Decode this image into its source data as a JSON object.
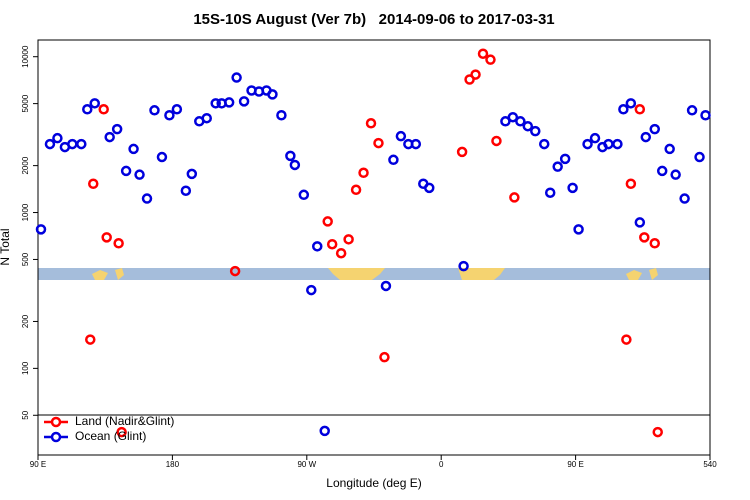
{
  "chart_data": {
    "type": "scatter",
    "title": "15S-10S August (Ver 7b)   2014-09-06 to 2017-03-31",
    "xlabel": "Longitude (deg E)",
    "ylabel": "N Total",
    "log_y": true,
    "legend": "bottomleft",
    "xlim": [
      90,
      540
    ],
    "xticks": [
      {
        "value": 90,
        "label": "90 E"
      },
      180,
      {
        "value": 270,
        "label": "90 W"
      },
      {
        "value": 360,
        "label": "0"
      },
      {
        "value": 450,
        "label": "90 E"
      },
      540
    ],
    "ylim": [
      27.8,
      12800
    ],
    "yticks": [
      50,
      100,
      200,
      500,
      1000,
      2000,
      5000,
      10000
    ],
    "series": [
      {
        "name": "Land (Nadir&Glint)",
        "color": "#ff0000",
        "x": [
          127,
          134,
          136,
          144,
          125,
          146,
          222,
          284,
          287,
          293,
          298,
          303,
          308,
          313,
          318,
          322,
          374,
          379,
          383,
          388,
          393,
          397,
          409,
          484,
          487,
          493,
          496,
          503,
          505
        ],
        "values": [
          1530,
          4600,
          693,
          635,
          153,
          39,
          421,
          877,
          626,
          548,
          673,
          1400,
          1800,
          3740,
          2790,
          118,
          2450,
          7140,
          7680,
          10450,
          9570,
          2880,
          1250,
          153,
          1530,
          4600,
          693,
          635,
          39
        ]
      },
      {
        "name": "Ocean (Glint)",
        "color": "#0000dd",
        "x": [
          92,
          98,
          103,
          108,
          113,
          119,
          123,
          128,
          138,
          143,
          149,
          154,
          158,
          163,
          168,
          173,
          178,
          183,
          189,
          193,
          198,
          203,
          209,
          213,
          218,
          223,
          228,
          233,
          238,
          243,
          247,
          253,
          259,
          262,
          268,
          273,
          277,
          282,
          323,
          328,
          333,
          338,
          343,
          348,
          352,
          375,
          403,
          408,
          413,
          418,
          423,
          429,
          433,
          438,
          443,
          448,
          452,
          458,
          463,
          468,
          472,
          478,
          482,
          487,
          493,
          497,
          503,
          508,
          513,
          517,
          523,
          528,
          533,
          537
        ],
        "values": [
          780,
          2750,
          3000,
          2630,
          2750,
          2750,
          4600,
          5020,
          3050,
          3430,
          1850,
          2560,
          1750,
          1230,
          4530,
          2270,
          4210,
          4600,
          1380,
          1770,
          3850,
          4030,
          5020,
          5020,
          5090,
          7350,
          5170,
          6070,
          5980,
          6070,
          5730,
          4210,
          2310,
          2020,
          1300,
          318,
          607,
          39.7,
          338,
          2180,
          3090,
          2750,
          2750,
          1530,
          1440,
          453,
          3850,
          4090,
          3850,
          3580,
          3330,
          2750,
          1340,
          1970,
          2210,
          1440,
          780,
          2750,
          3000,
          2630,
          2750,
          2750,
          4600,
          5020,
          864,
          3050,
          3430,
          1850,
          2560,
          1750,
          1230,
          4530,
          2270,
          4210
        ]
      }
    ]
  }
}
